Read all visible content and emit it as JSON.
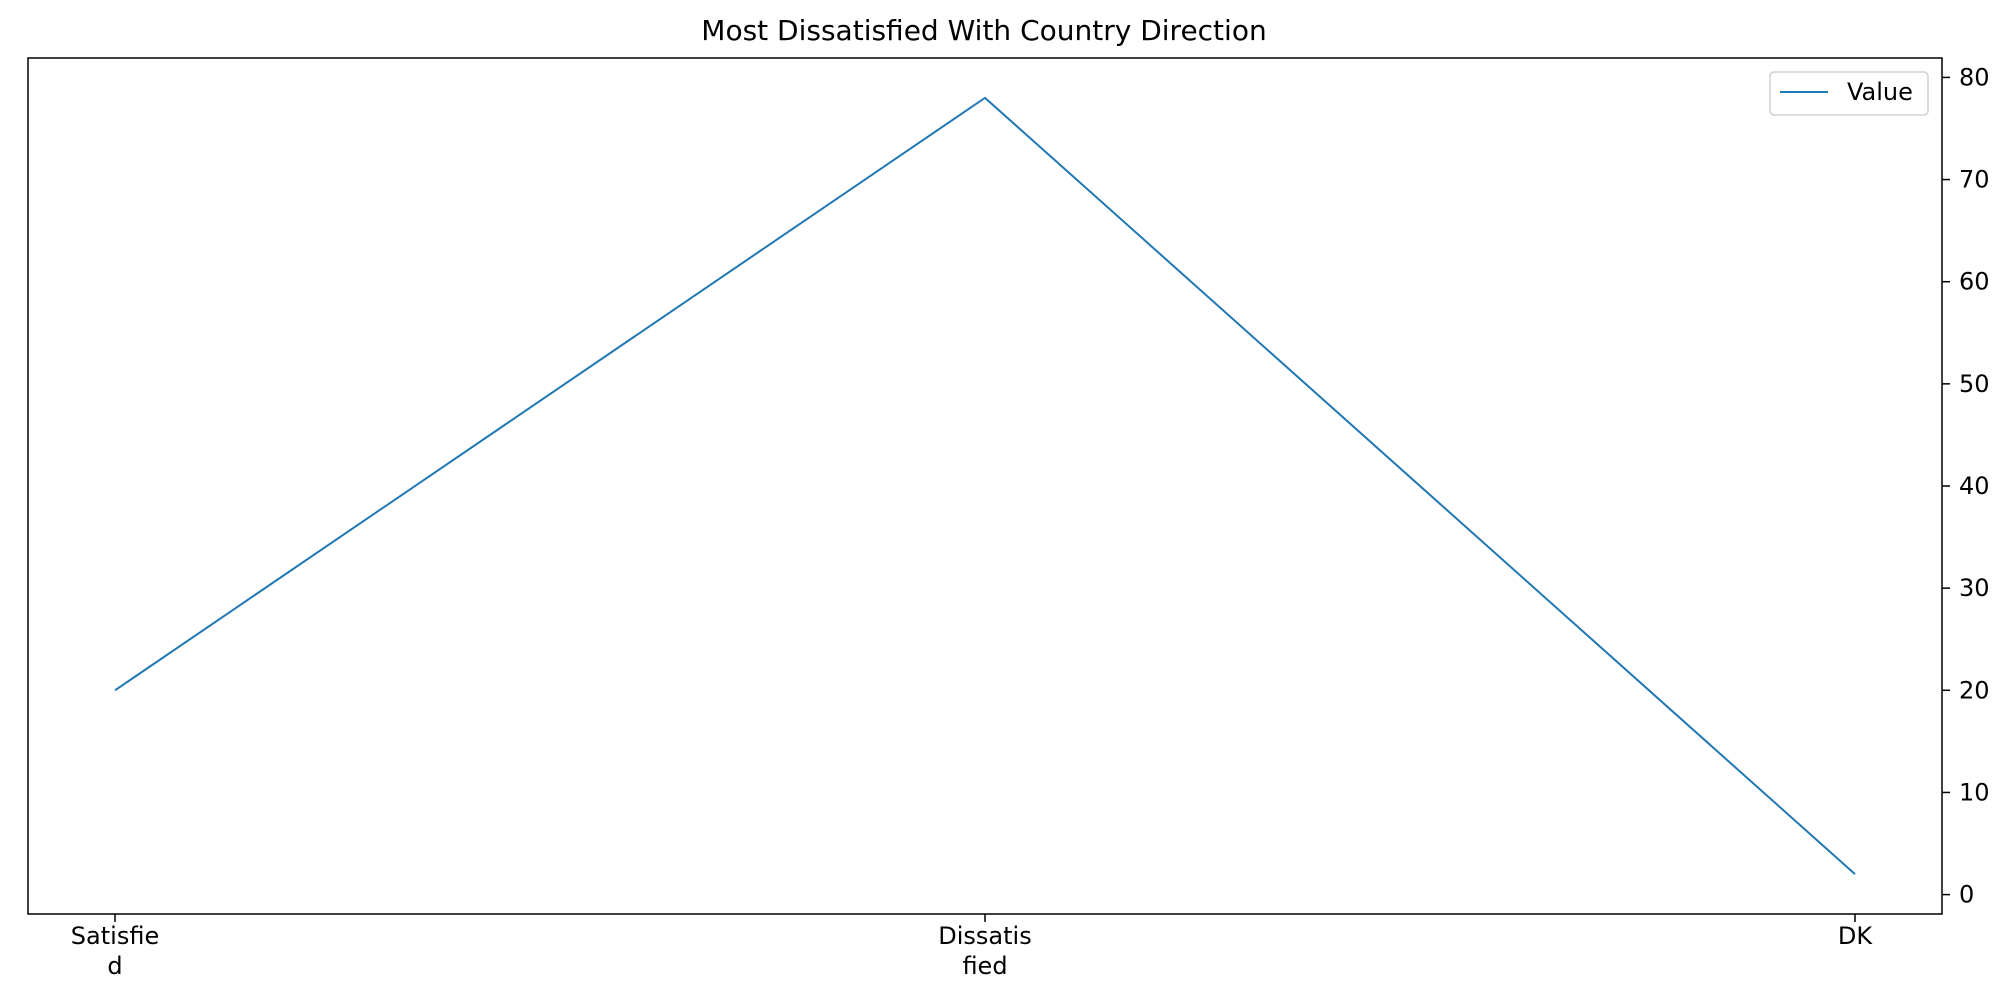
{
  "chart_data": {
    "type": "line",
    "title": "Most Dissatisfied With Country Direction",
    "categories": [
      "Satisfied",
      "Dissatisfied",
      "DK"
    ],
    "category_display_lines": [
      [
        "Satisfie",
        "d"
      ],
      [
        "Dissatis",
        "fied"
      ],
      [
        "DK"
      ]
    ],
    "series": [
      {
        "name": "Value",
        "values": [
          20,
          78,
          2
        ],
        "color": "#1f77b4"
      }
    ],
    "y_axis_position": "right",
    "ylim": [
      -1.9,
      81.9
    ],
    "yticks": [
      0,
      10,
      20,
      30,
      40,
      50,
      60,
      70,
      80
    ],
    "grid": false,
    "legend": {
      "position": "top-right",
      "entries": [
        "Value"
      ]
    }
  }
}
